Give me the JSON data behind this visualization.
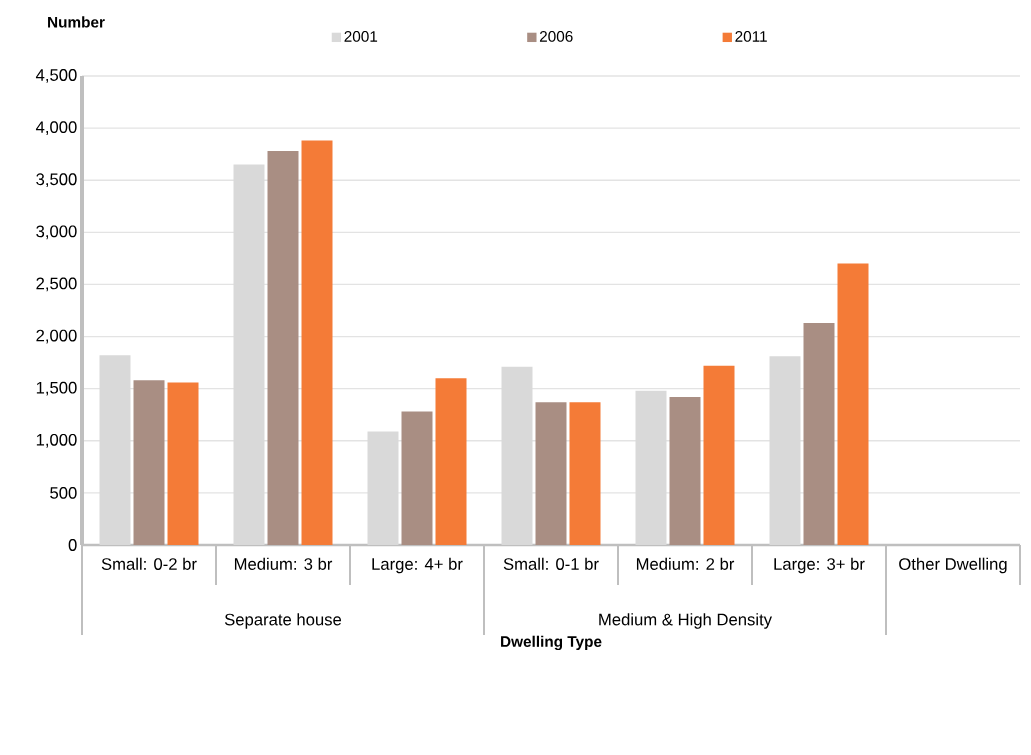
{
  "chart_data": {
    "type": "bar",
    "ylabel": "Number",
    "xlabel": "Dwelling Type",
    "categories": [
      "Small: 0-2 br",
      "Medium: 3 br",
      "Large: 4+ br",
      "Small: 0-1 br",
      "Medium: 2 br",
      "Large: 3+ br",
      "Other Dwelling"
    ],
    "annotations": [
      "Separate house",
      "Medium & High Density"
    ],
    "series": [
      {
        "name": "2001",
        "color": "#d9d9d9",
        "values": [
          1820,
          3650,
          1090,
          1710,
          1480,
          1810,
          null
        ]
      },
      {
        "name": "2006",
        "color": "#a98e83",
        "values": [
          1580,
          3780,
          1280,
          1370,
          1420,
          2130,
          null
        ]
      },
      {
        "name": "2011",
        "color": "#f47b37",
        "values": [
          1560,
          3880,
          1600,
          1370,
          1720,
          2700,
          null
        ]
      }
    ],
    "ylim": [
      0,
      4500
    ],
    "yticks": [
      0,
      500,
      {
        "value": 1000,
        "label": "1,000"
      },
      {
        "value": 1500,
        "label": "1,500"
      },
      {
        "value": 2000,
        "label": "2,000"
      },
      {
        "value": 2500,
        "label": "2,500"
      },
      {
        "value": 3000,
        "label": "3,000"
      },
      {
        "value": 3500,
        "label": "3,500"
      },
      {
        "value": 4000,
        "label": "4,000"
      },
      {
        "value": 4500,
        "label": "4,500"
      }
    ],
    "grid": "y",
    "legend": "top"
  }
}
